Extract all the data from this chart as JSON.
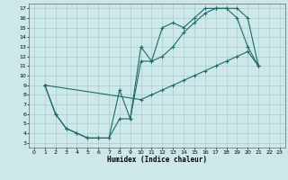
{
  "xlabel": "Humidex (Indice chaleur)",
  "xlim": [
    -0.5,
    23.5
  ],
  "ylim": [
    2.5,
    17.5
  ],
  "xticks": [
    0,
    1,
    2,
    3,
    4,
    5,
    6,
    7,
    8,
    9,
    10,
    11,
    12,
    13,
    14,
    15,
    16,
    17,
    18,
    19,
    20,
    21,
    22,
    23
  ],
  "yticks": [
    3,
    4,
    5,
    6,
    7,
    8,
    9,
    10,
    11,
    12,
    13,
    14,
    15,
    16,
    17
  ],
  "bg_color": "#cce8e8",
  "line_color": "#1a6b6b",
  "grid_color": "#aacccc",
  "line1_x": [
    1,
    2,
    3,
    4,
    5,
    6,
    7,
    8,
    9,
    10,
    11,
    12,
    13,
    14,
    15,
    16,
    17,
    18,
    19,
    20,
    21
  ],
  "line1_y": [
    9,
    6,
    4.5,
    4,
    3.5,
    3.5,
    3.5,
    8.5,
    5.5,
    13,
    11.5,
    15,
    15.5,
    15,
    16,
    17,
    17,
    17,
    16,
    13,
    11
  ],
  "line2_x": [
    1,
    2,
    3,
    4,
    5,
    6,
    7,
    8,
    9,
    10,
    11,
    12,
    13,
    14,
    15,
    16,
    17,
    18,
    19,
    20,
    21
  ],
  "line2_y": [
    9,
    6,
    4.5,
    4,
    3.5,
    3.5,
    3.5,
    5.5,
    5.5,
    11.5,
    11.5,
    12,
    13,
    14.5,
    15.5,
    16.5,
    17,
    17,
    17,
    16,
    11
  ],
  "line3_x": [
    1,
    10,
    11,
    12,
    13,
    14,
    15,
    16,
    17,
    18,
    19,
    20,
    21
  ],
  "line3_y": [
    9,
    7.5,
    8,
    8.5,
    9,
    9.5,
    10,
    10.5,
    11,
    11.5,
    12,
    12.5,
    11
  ]
}
